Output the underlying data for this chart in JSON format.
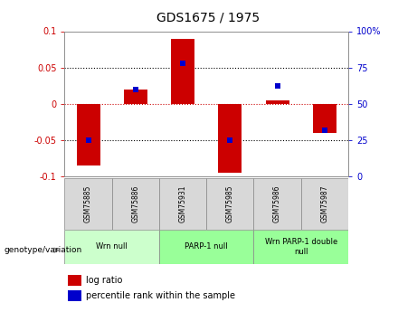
{
  "title": "GDS1675 / 1975",
  "samples": [
    "GSM75885",
    "GSM75886",
    "GSM75931",
    "GSM75985",
    "GSM75986",
    "GSM75987"
  ],
  "log_ratios": [
    -0.085,
    0.02,
    0.09,
    -0.095,
    0.005,
    -0.04
  ],
  "percentile_ranks": [
    25,
    60,
    78,
    25,
    62,
    32
  ],
  "group_positions": [
    {
      "label": "Wrn null",
      "start": 0,
      "end": 1,
      "color": "#ccffcc"
    },
    {
      "label": "PARP-1 null",
      "start": 2,
      "end": 3,
      "color": "#99ff99"
    },
    {
      "label": "Wrn PARP-1 double\nnull",
      "start": 4,
      "end": 5,
      "color": "#99ff99"
    }
  ],
  "ylim_left": [
    -0.1,
    0.1
  ],
  "ylim_right": [
    0,
    100
  ],
  "yticks_left": [
    -0.1,
    -0.05,
    0.0,
    0.05,
    0.1
  ],
  "yticks_right": [
    0,
    25,
    50,
    75,
    100
  ],
  "bar_color": "#cc0000",
  "dot_color": "#0000cc",
  "bar_width": 0.5,
  "bg_color": "#ffffff",
  "plot_bg": "#ffffff",
  "zero_line_color": "#cc0000",
  "title_fontsize": 10,
  "tick_fontsize": 7,
  "sample_fontsize": 5.5,
  "group_fontsize": 6,
  "legend_fontsize": 7
}
